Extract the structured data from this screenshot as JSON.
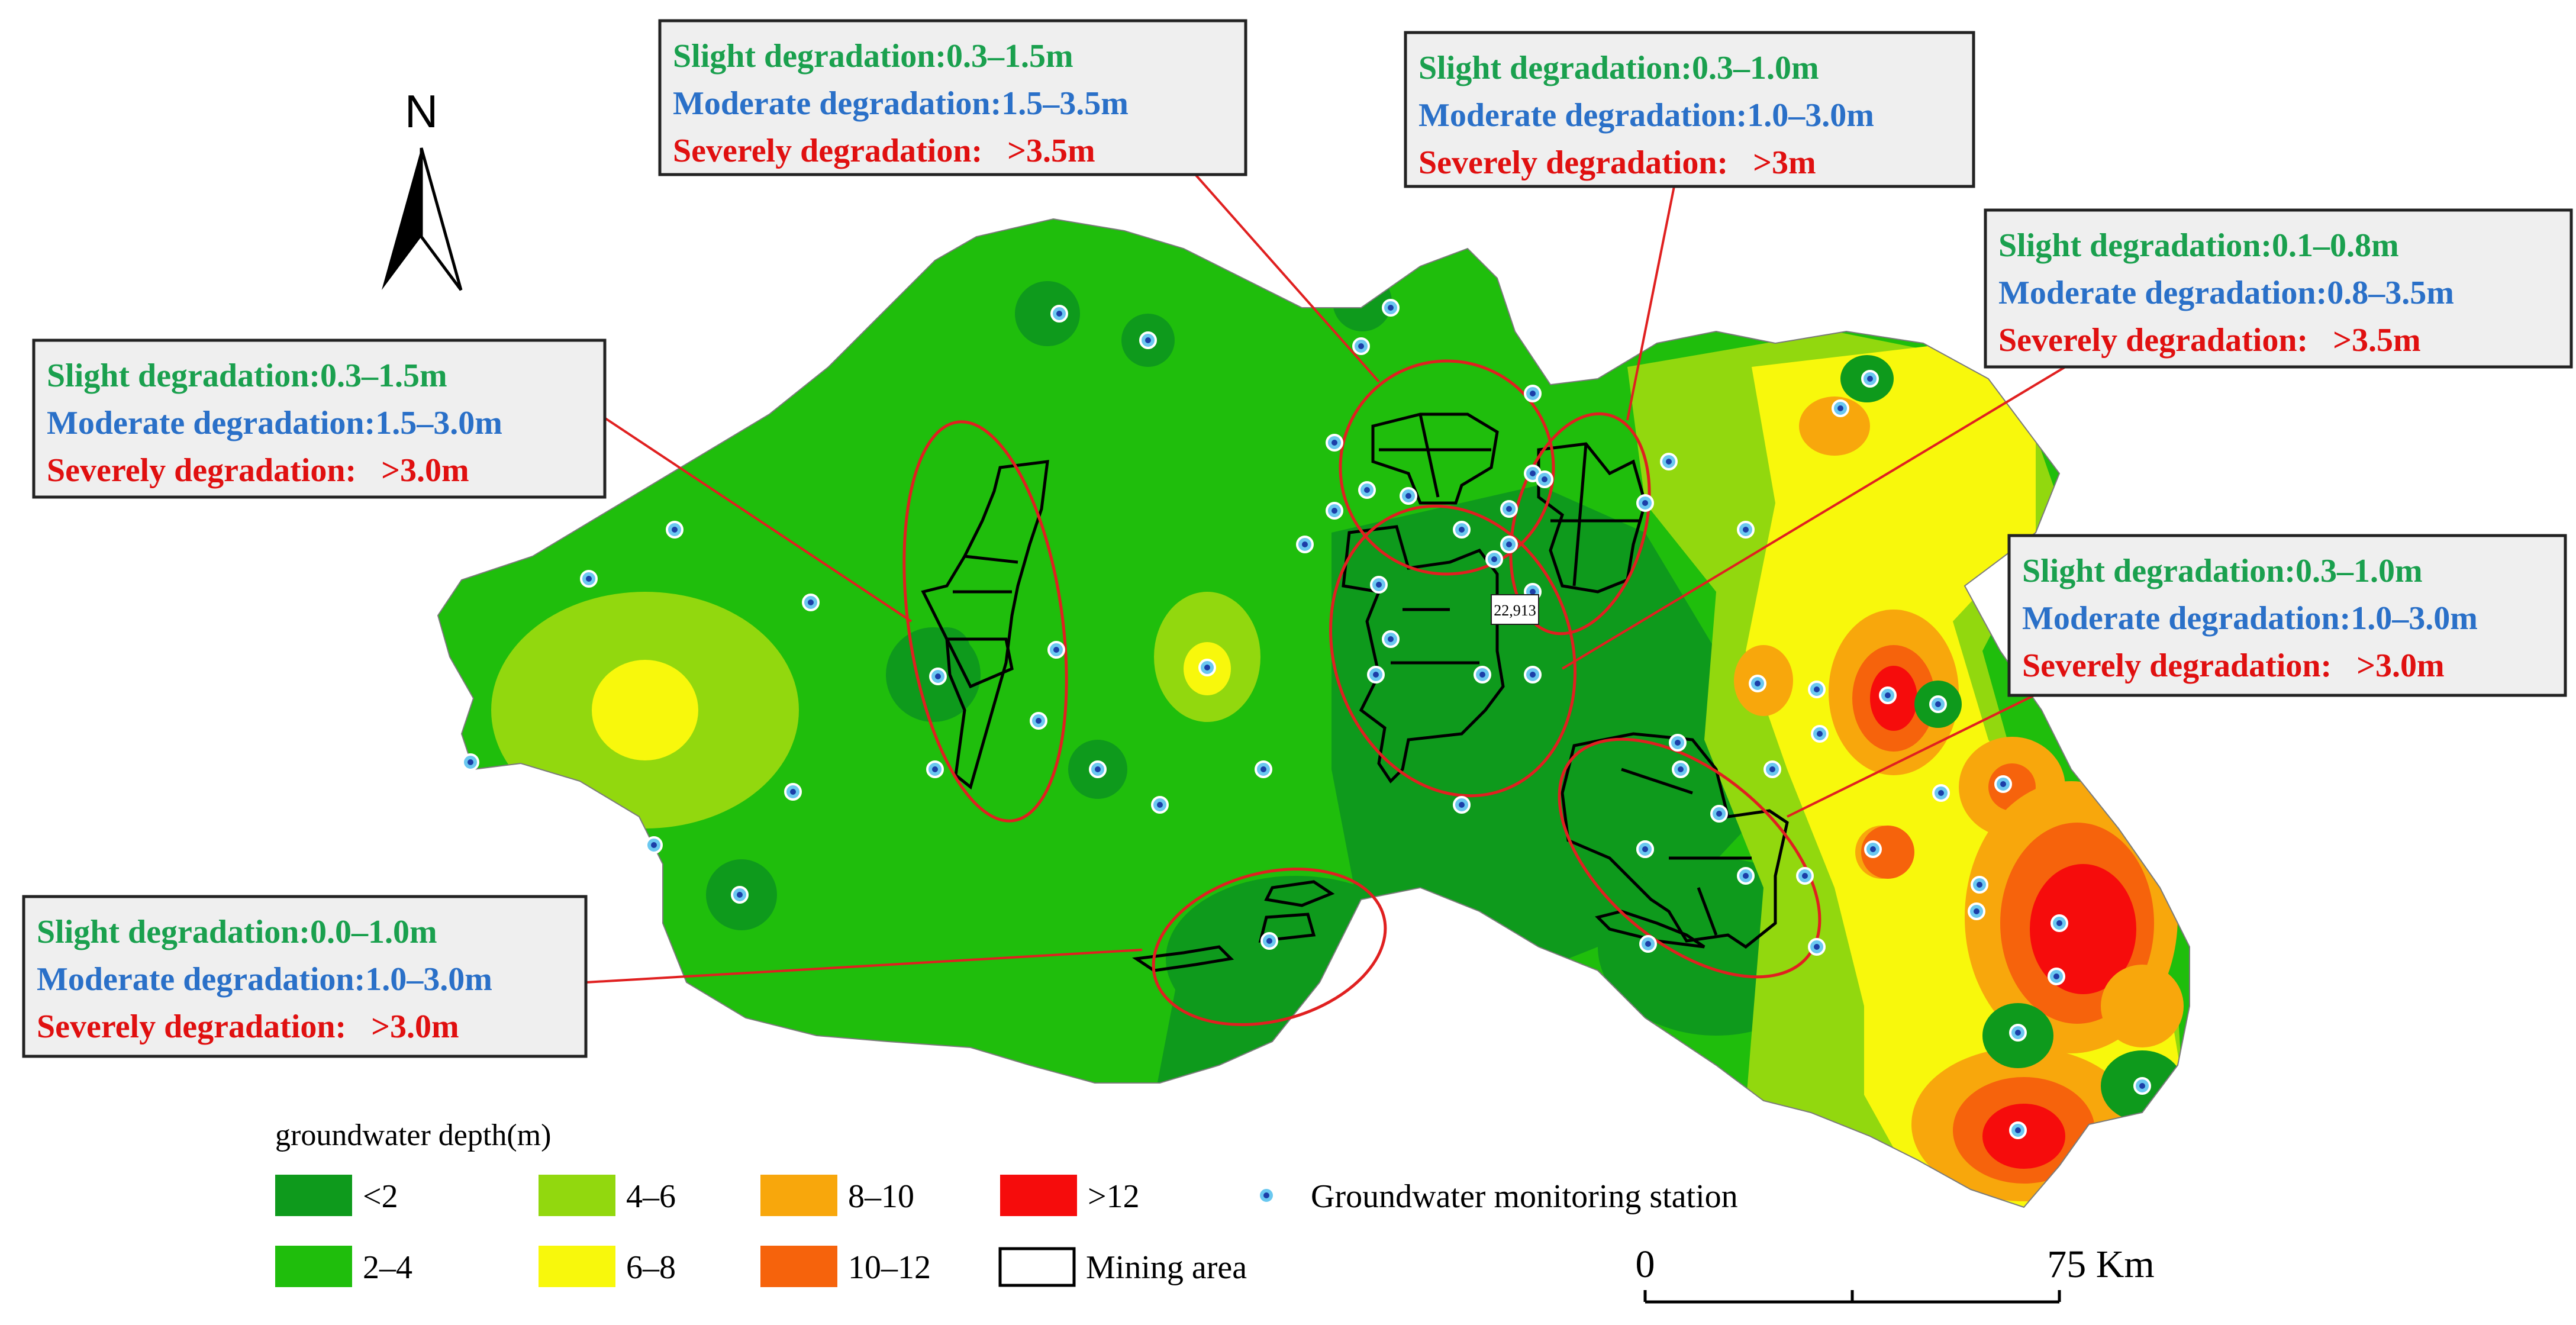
{
  "north_label": "N",
  "map_label": "22,913",
  "colors": {
    "lt2": "#0e9a1c",
    "d2_4": "#1fbe0c",
    "d4_6": "#92d80e",
    "d6_8": "#f8f80c",
    "d8_10": "#f8a70c",
    "d10_12": "#f6630c",
    "gt12": "#f60c0c",
    "slight": "#1aa04e",
    "moderate": "#2a70c8",
    "severe": "#e01010",
    "circle": "#e02020",
    "station_ring": "#6ac8f0",
    "station_dot": "#1c3ea8"
  },
  "annotations": [
    {
      "slight": "Slight degradation:0.3–1.5m",
      "moderate": "Moderate degradation:1.5–3.5m",
      "severe": "Severely degradation:   >3.5m"
    },
    {
      "slight": "Slight degradation:0.3–1.0m",
      "moderate": "Moderate degradation:1.0–3.0m",
      "severe": "Severely degradation:   >3m"
    },
    {
      "slight": "Slight degradation:0.1–0.8m",
      "moderate": "Moderate degradation:0.8–3.5m",
      "severe": "Severely degradation:   >3.5m"
    },
    {
      "slight": "Slight degradation:0.3–1.5m",
      "moderate": "Moderate degradation:1.5–3.0m",
      "severe": "Severely degradation:   >3.0m"
    },
    {
      "slight": "Slight degradation:0.3–1.0m",
      "moderate": "Moderate degradation:1.0–3.0m",
      "severe": "Severely degradation:   >3.0m"
    },
    {
      "slight": "Slight degradation:0.0–1.0m",
      "moderate": "Moderate degradation:1.0–3.0m",
      "severe": "Severely degradation:   >3.0m"
    }
  ],
  "legend": {
    "title": "groundwater depth(m)",
    "classes": [
      {
        "label": "<2",
        "color": "#0e9a1c"
      },
      {
        "label": "2–4",
        "color": "#1fbe0c"
      },
      {
        "label": "4–6",
        "color": "#92d80e"
      },
      {
        "label": "6–8",
        "color": "#f8f80c"
      },
      {
        "label": "8–10",
        "color": "#f8a70c"
      },
      {
        "label": "10–12",
        "color": "#f6630c"
      },
      {
        "label": ">12",
        "color": "#f60c0c"
      }
    ],
    "station_label": "Groundwater monitoring station",
    "mining_label": "Mining area"
  },
  "scale_bar": {
    "start_label": "0",
    "end_label": "75 Km"
  }
}
